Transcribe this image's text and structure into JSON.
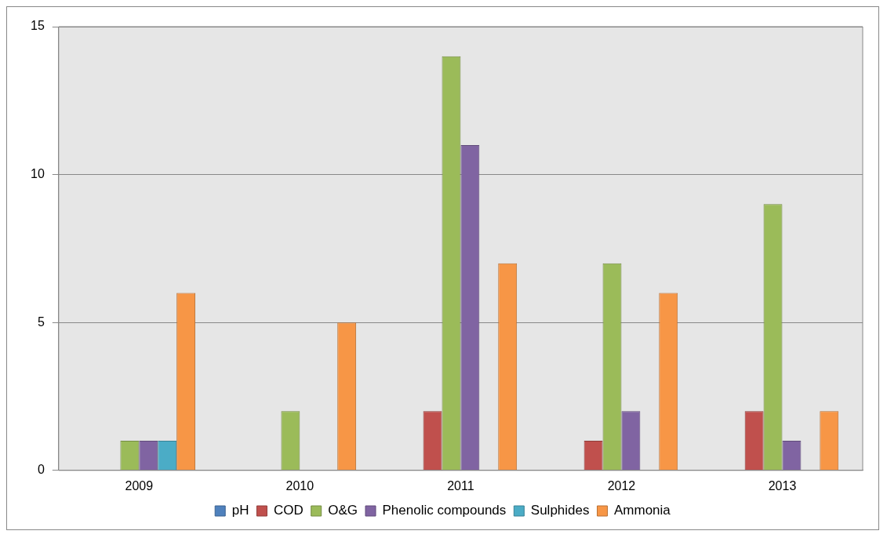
{
  "chart_data": {
    "type": "bar",
    "categories": [
      "2009",
      "2010",
      "2011",
      "2012",
      "2013"
    ],
    "series": [
      {
        "name": "pH",
        "color": "#4f81bd",
        "values": [
          0,
          0,
          0,
          0,
          0
        ]
      },
      {
        "name": "COD",
        "color": "#c0504d",
        "values": [
          0,
          0,
          2,
          1,
          2
        ]
      },
      {
        "name": "O&G",
        "color": "#9bbb59",
        "values": [
          1,
          2,
          14,
          7,
          9
        ]
      },
      {
        "name": "Phenolic compounds",
        "color": "#8064a2",
        "values": [
          1,
          0,
          11,
          2,
          1
        ]
      },
      {
        "name": "Sulphides",
        "color": "#4bacc6",
        "values": [
          1,
          0,
          0,
          0,
          0
        ]
      },
      {
        "name": "Ammonia",
        "color": "#f79646",
        "values": [
          6,
          5,
          7,
          6,
          2
        ]
      }
    ],
    "ylim": [
      0,
      15
    ],
    "yticks": [
      0,
      5,
      10,
      15
    ],
    "grid": "y",
    "legend": "bottom"
  }
}
